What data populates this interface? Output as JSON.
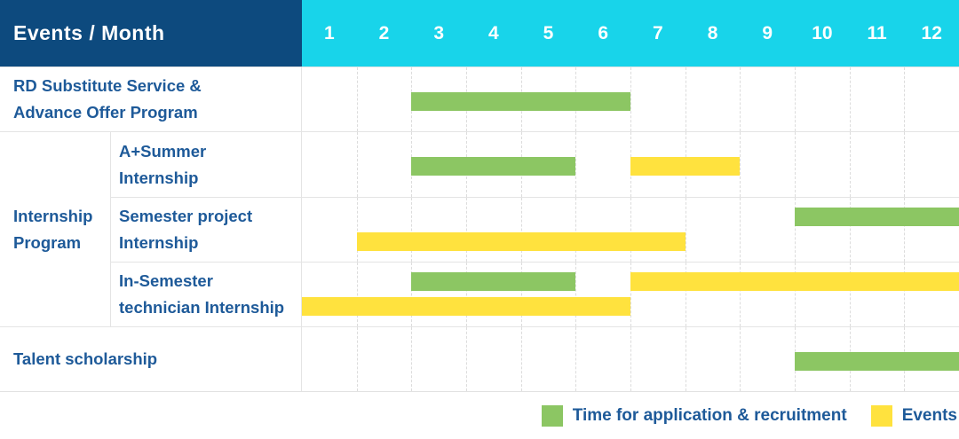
{
  "header": {
    "title": "Events / Month",
    "months": [
      "1",
      "2",
      "3",
      "4",
      "5",
      "6",
      "7",
      "8",
      "9",
      "10",
      "11",
      "12"
    ]
  },
  "colors": {
    "navy": "#0d4a7e",
    "cyan": "#18d4ea",
    "green": "#8cc663",
    "yellow": "#ffe23e",
    "label_text": "#1e5a99",
    "grid": "#dcdcdc"
  },
  "rows": [
    {
      "label": "RD Substitute Service &\nAdvance Offer Program",
      "bars": [
        {
          "color": "green",
          "start": 3,
          "end": 6,
          "lane": "center"
        }
      ]
    },
    {
      "label": "A+Summer\nInternship",
      "bars": [
        {
          "color": "green",
          "start": 3,
          "end": 5,
          "lane": "center"
        },
        {
          "color": "yellow",
          "start": 7,
          "end": 8,
          "lane": "center"
        }
      ]
    },
    {
      "label": "Semester project\nInternship",
      "bars": [
        {
          "color": "green",
          "start": 10,
          "end": 12,
          "lane": "top"
        },
        {
          "color": "yellow",
          "start": 2,
          "end": 7,
          "lane": "bottom"
        }
      ]
    },
    {
      "label": "In-Semester\ntechnician Internship",
      "bars": [
        {
          "color": "green",
          "start": 3,
          "end": 5,
          "lane": "top"
        },
        {
          "color": "yellow",
          "start": 7,
          "end": 12,
          "lane": "top"
        },
        {
          "color": "yellow",
          "start": 1,
          "end": 6,
          "lane": "bottom"
        }
      ]
    },
    {
      "label": "Talent scholarship",
      "bars": [
        {
          "color": "green",
          "start": 10,
          "end": 12,
          "lane": "center"
        }
      ]
    }
  ],
  "group": {
    "label": "Internship\nProgram"
  },
  "legend": {
    "items": [
      {
        "label": "Time for application & recruitment",
        "color": "green"
      },
      {
        "label": "Events",
        "color": "yellow"
      }
    ]
  },
  "chart_data": {
    "type": "bar",
    "subtype": "gantt-schedule",
    "title": "Events / Month",
    "x_categories": [
      1,
      2,
      3,
      4,
      5,
      6,
      7,
      8,
      9,
      10,
      11,
      12
    ],
    "x_range": [
      1,
      12
    ],
    "grid": true,
    "legend_position": "bottom-right",
    "legend": [
      "Time for application & recruitment",
      "Events"
    ],
    "tasks": [
      {
        "row": "RD Substitute Service & Advance Offer Program",
        "group": null,
        "series": "Time for application & recruitment",
        "start_month": 3,
        "end_month": 6
      },
      {
        "row": "A+Summer Internship",
        "group": "Internship Program",
        "series": "Time for application & recruitment",
        "start_month": 3,
        "end_month": 5
      },
      {
        "row": "A+Summer Internship",
        "group": "Internship Program",
        "series": "Events",
        "start_month": 7,
        "end_month": 8
      },
      {
        "row": "Semester project Internship",
        "group": "Internship Program",
        "series": "Time for application & recruitment",
        "start_month": 10,
        "end_month": 12
      },
      {
        "row": "Semester project Internship",
        "group": "Internship Program",
        "series": "Events",
        "start_month": 2,
        "end_month": 7
      },
      {
        "row": "In-Semester technician Internship",
        "group": "Internship Program",
        "series": "Time for application & recruitment",
        "start_month": 3,
        "end_month": 5
      },
      {
        "row": "In-Semester technician Internship",
        "group": "Internship Program",
        "series": "Events",
        "start_month": 7,
        "end_month": 12
      },
      {
        "row": "In-Semester technician Internship",
        "group": "Internship Program",
        "series": "Events",
        "start_month": 1,
        "end_month": 6
      },
      {
        "row": "Talent scholarship",
        "group": null,
        "series": "Time for application & recruitment",
        "start_month": 10,
        "end_month": 12
      }
    ]
  }
}
